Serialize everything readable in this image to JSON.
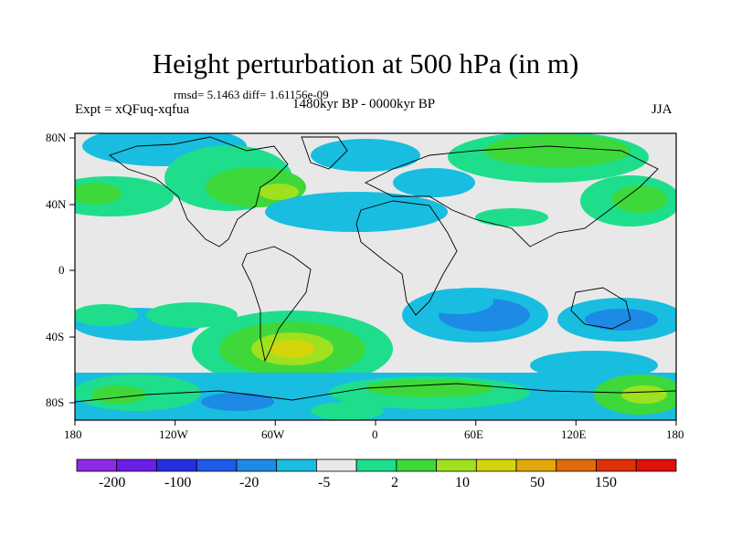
{
  "title": "Height perturbation at 500 hPa (in m)",
  "stats": "rmsd= 5.1463 diff= 1.61156e-09",
  "period": "1480kyr BP - 0000kyr BP",
  "experiment": "Expt = xQFuq-xqfua",
  "season": "JJA",
  "map": {
    "lat_labels": [
      "80N",
      "40N",
      "0",
      "40S",
      "80S"
    ],
    "lon_labels": [
      "180",
      "120W",
      "60W",
      "0",
      "60E",
      "120E",
      "180"
    ]
  },
  "colorbar": {
    "labels": [
      "-200",
      "-100",
      "-20",
      "-5",
      "2",
      "10",
      "50",
      "150"
    ],
    "colors": [
      "#8c2ae6",
      "#6a1ee6",
      "#2430e0",
      "#1f5ae8",
      "#1d8ae6",
      "#19bde0",
      "#e8e8e8",
      "#1ede8c",
      "#3ed83a",
      "#9fe01f",
      "#d4d40a",
      "#e0a80a",
      "#e06a0a",
      "#e0300a",
      "#e0100a"
    ]
  },
  "palette": {
    "neutral": "#e8e8e8",
    "cyan": "#19bde0",
    "blue": "#1d8ae6",
    "teal": "#1ede8c",
    "green": "#3ed83a",
    "yellow_green": "#9fe01f",
    "yellow": "#d4d40a"
  }
}
